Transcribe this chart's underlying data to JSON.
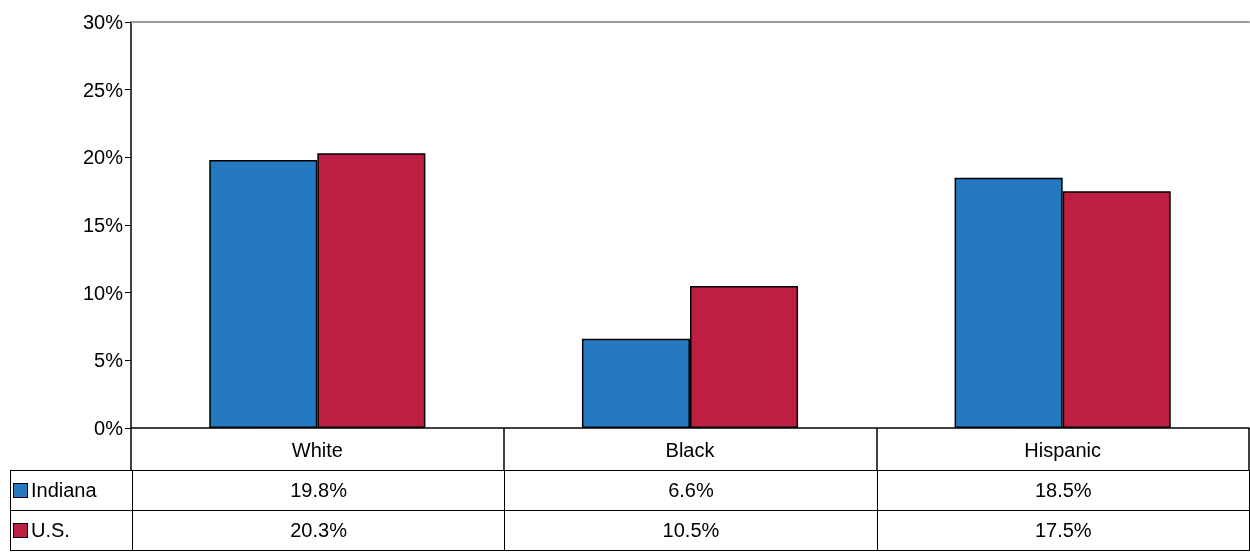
{
  "chart_data": {
    "type": "bar",
    "categories": [
      "White",
      "Black",
      "Hispanic"
    ],
    "series": [
      {
        "name": "Indiana",
        "color": "#2479c1",
        "values": [
          19.8,
          6.6,
          18.5
        ],
        "value_labels": [
          "19.8%",
          "6.6%",
          "18.5%"
        ]
      },
      {
        "name": "U.S.",
        "color": "#be1e41",
        "values": [
          20.3,
          10.5,
          17.5
        ],
        "value_labels": [
          "20.3%",
          "10.5%",
          "17.5%"
        ]
      }
    ],
    "ylim": [
      0,
      30
    ],
    "yticks": [
      {
        "value": 0,
        "label": "0%"
      },
      {
        "value": 5,
        "label": "5%"
      },
      {
        "value": 10,
        "label": "10%"
      },
      {
        "value": 15,
        "label": "15%"
      },
      {
        "value": 20,
        "label": "20%"
      },
      {
        "value": 25,
        "label": "25%"
      },
      {
        "value": 30,
        "label": "30%"
      }
    ],
    "grid": false,
    "legend": "bottom"
  }
}
